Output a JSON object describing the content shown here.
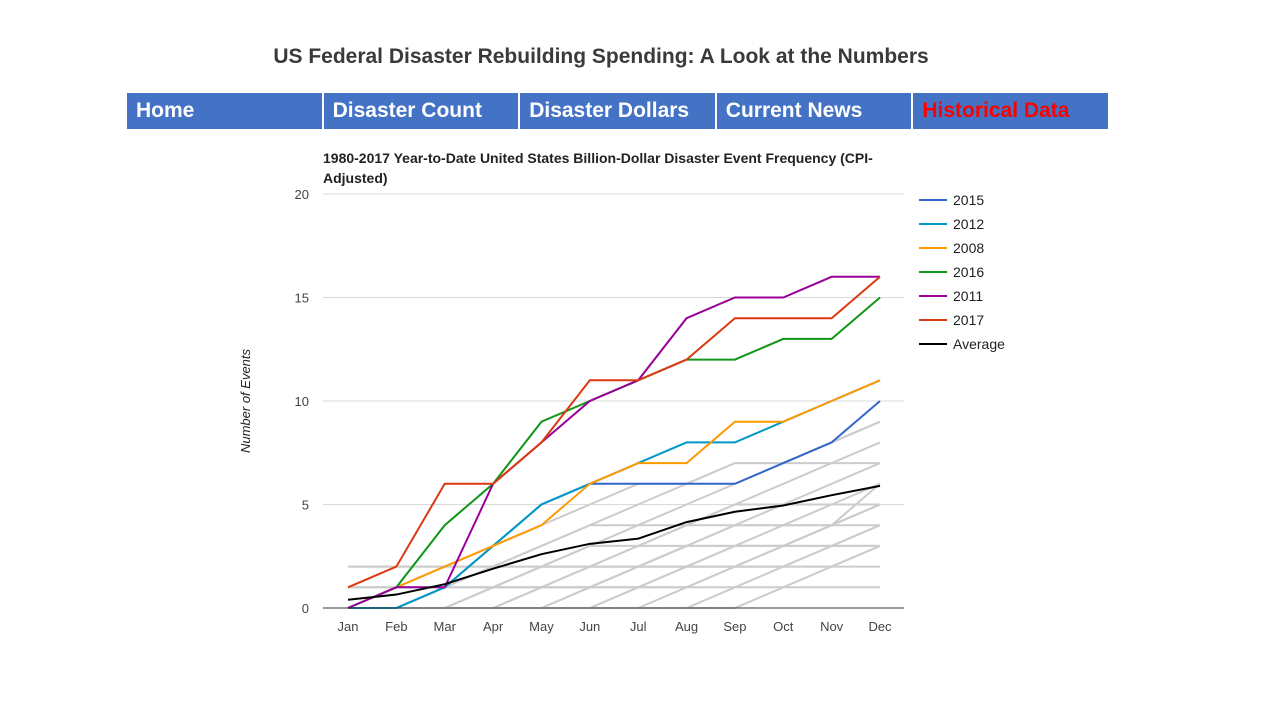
{
  "page": {
    "title": "US Federal Disaster Rebuilding Spending: A Look at the Numbers"
  },
  "nav": {
    "items": [
      {
        "label": "Home",
        "active": false
      },
      {
        "label": "Disaster Count",
        "active": false
      },
      {
        "label": "Disaster Dollars",
        "active": false
      },
      {
        "label": "Current News",
        "active": false
      },
      {
        "label": "Historical Data",
        "active": true
      }
    ]
  },
  "chart_data": {
    "type": "line",
    "title_lines": [
      "1980-2017 Year-to-Date United States Billion-Dollar Disaster Event Frequency (CPI-",
      "Adjusted)"
    ],
    "xlabel": "",
    "ylabel": "Number of Events",
    "ylim": [
      0,
      20
    ],
    "yticks": [
      0,
      5,
      10,
      15,
      20
    ],
    "grid": true,
    "legend_position": "right",
    "categories": [
      "Jan",
      "Feb",
      "Mar",
      "Apr",
      "May",
      "Jun",
      "Jul",
      "Aug",
      "Sep",
      "Oct",
      "Nov",
      "Dec"
    ],
    "series": [
      {
        "name": "2015",
        "color": "#3366cc",
        "values": [
          0,
          0,
          1,
          3,
          5,
          6,
          6,
          6,
          6,
          7,
          8,
          10
        ]
      },
      {
        "name": "2012",
        "color": "#0099c6",
        "values": [
          0,
          0,
          1,
          3,
          5,
          6,
          7,
          8,
          8,
          9,
          10,
          11
        ]
      },
      {
        "name": "2008",
        "color": "#ff9900",
        "values": [
          0,
          1,
          2,
          3,
          4,
          6,
          7,
          7,
          9,
          9,
          10,
          11
        ]
      },
      {
        "name": "2016",
        "color": "#109618",
        "values": [
          0,
          1,
          4,
          6,
          9,
          10,
          11,
          12,
          12,
          13,
          13,
          15
        ]
      },
      {
        "name": "2011",
        "color": "#990099",
        "values": [
          0,
          1,
          1,
          6,
          8,
          10,
          11,
          14,
          15,
          15,
          16,
          16
        ]
      },
      {
        "name": "2017",
        "color": "#dc3912",
        "values": [
          1,
          2,
          6,
          6,
          8,
          11,
          11,
          12,
          14,
          14,
          14,
          16
        ]
      },
      {
        "name": "Average",
        "color": "#000000",
        "values": [
          0.4,
          0.65,
          1.15,
          1.9,
          2.6,
          3.1,
          3.35,
          4.15,
          4.65,
          4.95,
          5.45,
          5.9
        ]
      }
    ],
    "background_series": {
      "color": "#cccccc",
      "values": [
        [
          2,
          2,
          2,
          2,
          2,
          2,
          2,
          2,
          2,
          2,
          2,
          2
        ],
        [
          1,
          1,
          1,
          1,
          1,
          1,
          1,
          1,
          1,
          1,
          1,
          1
        ],
        [
          0,
          0,
          0,
          1,
          2,
          3,
          4,
          5,
          6,
          7,
          8,
          9
        ],
        [
          0,
          0,
          0,
          0,
          1,
          2,
          3,
          4,
          5,
          6,
          7,
          8
        ],
        [
          0,
          0,
          0,
          0,
          0,
          1,
          2,
          3,
          4,
          5,
          6,
          7
        ],
        [
          0,
          0,
          0,
          0,
          0,
          0,
          1,
          2,
          3,
          4,
          5,
          6
        ],
        [
          0,
          0,
          0,
          0,
          0,
          0,
          0,
          1,
          2,
          3,
          4,
          5
        ],
        [
          0,
          0,
          0,
          0,
          0,
          0,
          0,
          0,
          1,
          2,
          3,
          4
        ],
        [
          0,
          0,
          1,
          2,
          3,
          4,
          5,
          6,
          7,
          7,
          8,
          9
        ],
        [
          0,
          1,
          2,
          3,
          4,
          5,
          6,
          6,
          7,
          7,
          7,
          7
        ],
        [
          1,
          1,
          1,
          2,
          3,
          4,
          4,
          4,
          4,
          4,
          4,
          4
        ],
        [
          0,
          0,
          1,
          1,
          2,
          2,
          3,
          4,
          5,
          5,
          5,
          5
        ],
        [
          0,
          0,
          0,
          1,
          2,
          3,
          3,
          3,
          3,
          3,
          3,
          3
        ],
        [
          2,
          2,
          2,
          2,
          2,
          2,
          2,
          3,
          3,
          3,
          3,
          3
        ],
        [
          0,
          0,
          0,
          0,
          0,
          0,
          0,
          0,
          0,
          1,
          2,
          3
        ],
        [
          1,
          1,
          1,
          1,
          1,
          1,
          1,
          1,
          2,
          2,
          2,
          3
        ],
        [
          0,
          0,
          0,
          0,
          0,
          0,
          1,
          2,
          3,
          3,
          4,
          5
        ],
        [
          0,
          0,
          0,
          0,
          1,
          2,
          2,
          2,
          2,
          2,
          3,
          4
        ],
        [
          0,
          0,
          0,
          1,
          1,
          1,
          2,
          3,
          4,
          4,
          4,
          6
        ],
        [
          0,
          0,
          0,
          0,
          0,
          1,
          2,
          2,
          2,
          3,
          4,
          5
        ]
      ]
    }
  }
}
